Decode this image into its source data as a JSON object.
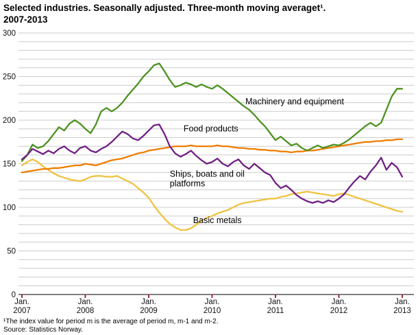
{
  "title": {
    "line1": "Selected industries. Seasonally adjusted. Three-month moving averaget¹.",
    "line2": "2007-2013"
  },
  "footnote": "¹The index value for period m is the average of period m, m-1 and m-2.",
  "source": "Source: Statistics Norway.",
  "chart_data": {
    "type": "line",
    "title": "Selected industries. Seasonally adjusted. Three-month moving average. 2007-2013",
    "xlabel": "",
    "ylabel": "",
    "ylim": [
      0,
      300
    ],
    "y_ticks": [
      0,
      50,
      100,
      150,
      200,
      250,
      300
    ],
    "grid_step": 10,
    "grid": true,
    "legend_position": "inline-annotations",
    "x_unit": "month",
    "x_start": "Jan 2007",
    "x_end": "Jan 2013",
    "x_ticks": [
      {
        "month": 0,
        "label_top": "Jan.",
        "label_bottom": "2007"
      },
      {
        "month": 12,
        "label_top": "Jan.",
        "label_bottom": "2008"
      },
      {
        "month": 24,
        "label_top": "Jan.",
        "label_bottom": "2009"
      },
      {
        "month": 36,
        "label_top": "Jan.",
        "label_bottom": "2010"
      },
      {
        "month": 48,
        "label_top": "Jan.",
        "label_bottom": "2011"
      },
      {
        "month": 60,
        "label_top": "Jan.",
        "label_bottom": "2012"
      },
      {
        "month": 72,
        "label_top": "Jan.",
        "label_bottom": "2013"
      }
    ],
    "style": {
      "grid_color": "#cccccc",
      "axis_color": "#333333",
      "tick_color": "#a12830",
      "text_color": "#000000"
    },
    "series": [
      {
        "name": "Machinery and equipment",
        "color": "#4d9221",
        "z": 3,
        "values": [
          153,
          160,
          172,
          168,
          170,
          176,
          184,
          192,
          188,
          196,
          200,
          196,
          190,
          185,
          195,
          210,
          214,
          210,
          214,
          220,
          228,
          235,
          242,
          250,
          256,
          263,
          265,
          256,
          246,
          238,
          240,
          243,
          241,
          238,
          241,
          238,
          236,
          240,
          236,
          231,
          226,
          221,
          216,
          212,
          206,
          199,
          193,
          185,
          177,
          181,
          176,
          171,
          173,
          168,
          165,
          168,
          171,
          168,
          170,
          172,
          171,
          174,
          178,
          183,
          188,
          193,
          197,
          193,
          197,
          212,
          227,
          236,
          236
        ]
      },
      {
        "name": "Food products",
        "color": "#ef7d00",
        "z": 2,
        "values": [
          140,
          141,
          142,
          143,
          144,
          144,
          145,
          145,
          146,
          147,
          148,
          148,
          150,
          149,
          148,
          150,
          152,
          154,
          155,
          156,
          158,
          160,
          162,
          163,
          165,
          166,
          167,
          168,
          169,
          170,
          170,
          170,
          171,
          170,
          170,
          170,
          170,
          171,
          170,
          170,
          169,
          168,
          168,
          167,
          167,
          166,
          166,
          165,
          165,
          164,
          164,
          163,
          164,
          164,
          165,
          165,
          166,
          167,
          168,
          169,
          170,
          171,
          172,
          173,
          174,
          175,
          175,
          176,
          176,
          177,
          177,
          178,
          178
        ]
      },
      {
        "name": "Ships, boats and oil platforms",
        "color": "#702082",
        "z": 4,
        "values": [
          155,
          160,
          167,
          164,
          161,
          165,
          162,
          167,
          170,
          165,
          162,
          168,
          170,
          165,
          163,
          167,
          170,
          175,
          181,
          187,
          184,
          179,
          177,
          182,
          188,
          194,
          195,
          184,
          170,
          162,
          158,
          161,
          165,
          159,
          154,
          150,
          152,
          156,
          150,
          147,
          152,
          155,
          148,
          144,
          150,
          145,
          140,
          137,
          128,
          122,
          125,
          120,
          114,
          110,
          107,
          105,
          107,
          105,
          108,
          106,
          110,
          115,
          123,
          130,
          136,
          132,
          141,
          148,
          157,
          143,
          151,
          146,
          135
        ]
      },
      {
        "name": "Basic metals",
        "color": "#f0c240",
        "z": 1,
        "values": [
          148,
          152,
          155,
          152,
          147,
          143,
          139,
          136,
          134,
          132,
          131,
          130,
          132,
          135,
          136,
          136,
          135,
          135,
          136,
          133,
          130,
          127,
          122,
          117,
          111,
          102,
          94,
          87,
          81,
          77,
          74,
          74,
          76,
          80,
          85,
          88,
          90,
          93,
          95,
          97,
          100,
          103,
          105,
          106,
          107,
          108,
          109,
          110,
          110,
          112,
          113,
          115,
          116,
          117,
          118,
          117,
          116,
          115,
          114,
          113,
          115,
          116,
          114,
          112,
          110,
          108,
          106,
          104,
          102,
          100,
          98,
          96,
          95
        ]
      }
    ],
    "annotations": [
      {
        "lines": [
          "Machinery and equipment"
        ],
        "month": 42.3,
        "value": 218
      },
      {
        "lines": [
          "Food products"
        ],
        "month": 30.6,
        "value": 187
      },
      {
        "lines": [
          "Ships, boats and oil",
          "platforms"
        ],
        "month": 28.0,
        "value": 135
      },
      {
        "lines": [
          "Basic metals"
        ],
        "month": 32.4,
        "value": 82
      }
    ]
  }
}
